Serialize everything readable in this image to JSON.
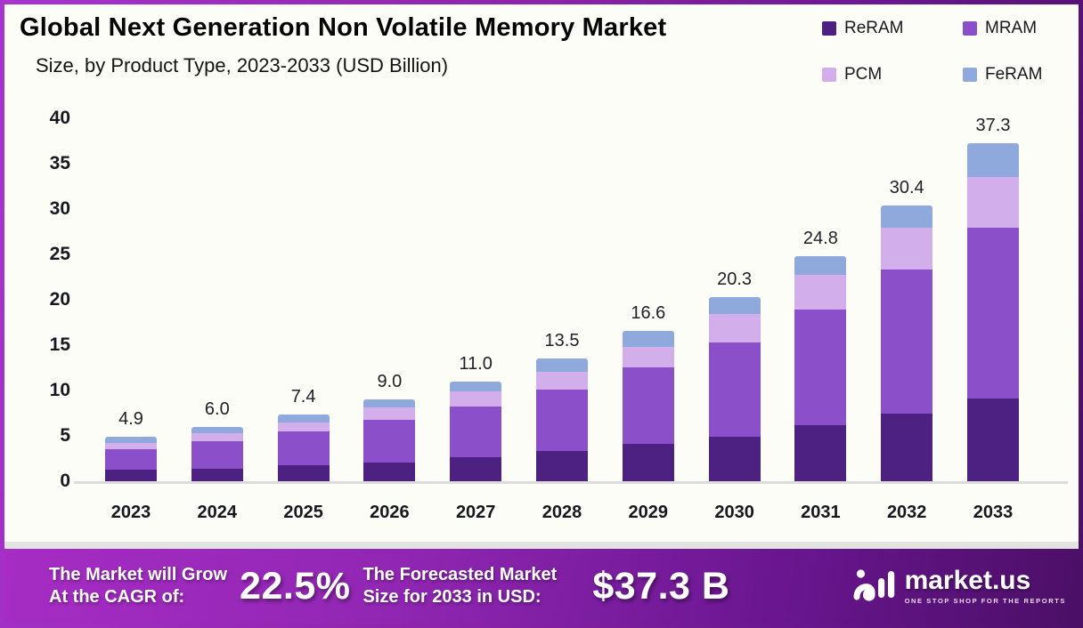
{
  "header": {
    "title": "Global Next Generation Non Volatile Memory Market",
    "subtitle": "Size, by Product Type, 2023-2033 (USD Billion)"
  },
  "legend": [
    {
      "label": "ReRAM",
      "color": "#4C2182"
    },
    {
      "label": "MRAM",
      "color": "#8B4FC9"
    },
    {
      "label": "PCM",
      "color": "#D2AEEB"
    },
    {
      "label": "FeRAM",
      "color": "#8FA9DC"
    }
  ],
  "chart_data": {
    "type": "bar",
    "stacked": true,
    "title": "Global Next Generation Non Volatile Memory Market Size, by Product Type, 2023-2033 (USD Billion)",
    "categories": [
      "2023",
      "2024",
      "2025",
      "2026",
      "2027",
      "2028",
      "2029",
      "2030",
      "2031",
      "2032",
      "2033"
    ],
    "series": [
      {
        "name": "ReRAM",
        "color": "#4C2182",
        "values": [
          1.3,
          1.4,
          1.8,
          2.1,
          2.6,
          3.3,
          4.1,
          4.9,
          6.2,
          7.5,
          9.1
        ]
      },
      {
        "name": "MRAM",
        "color": "#8B4FC9",
        "values": [
          2.2,
          3.0,
          3.7,
          4.7,
          5.6,
          6.8,
          8.5,
          10.4,
          12.7,
          15.8,
          18.8
        ]
      },
      {
        "name": "PCM",
        "color": "#D2AEEB",
        "values": [
          0.7,
          0.9,
          1.0,
          1.3,
          1.7,
          2.0,
          2.2,
          3.1,
          3.8,
          4.6,
          5.6
        ]
      },
      {
        "name": "FeRAM",
        "color": "#8FA9DC",
        "values": [
          0.7,
          0.7,
          0.9,
          0.9,
          1.1,
          1.4,
          1.8,
          1.9,
          2.1,
          2.5,
          3.8
        ]
      }
    ],
    "totals": [
      4.9,
      6.0,
      7.4,
      9.0,
      11.0,
      13.5,
      16.6,
      20.3,
      24.8,
      30.4,
      37.3
    ],
    "total_labels": [
      "4.9",
      "6.0",
      "7.4",
      "9.0",
      "11.0",
      "13.5",
      "16.6",
      "20.3",
      "24.8",
      "30.4",
      "37.3"
    ],
    "xlabel": "",
    "ylabel": "",
    "ylim": [
      0,
      40
    ],
    "yticks": [
      0,
      5,
      10,
      15,
      20,
      25,
      30,
      35,
      40
    ],
    "grid": false,
    "legend_position": "top-right"
  },
  "footer": {
    "cagr_label_line1": "The Market will Grow",
    "cagr_label_line2": "At the CAGR of:",
    "cagr_value": "22.5%",
    "forecast_label_line1": "The Forecasted Market",
    "forecast_label_line2": "Size for 2033 in USD:",
    "forecast_value": "$37.3 B",
    "brand": {
      "name": "market.us",
      "tagline": "ONE STOP SHOP FOR THE REPORTS"
    }
  },
  "colors": {
    "frame_border": "#8E24AA",
    "banner_gradient_start": "#A62CC4",
    "banner_gradient_end": "#4B0F66",
    "chart_background": "#FDFDF8",
    "axis_line": "#DCDCDC",
    "text_dark": "#17171F",
    "text_white": "#FFFFFF"
  }
}
